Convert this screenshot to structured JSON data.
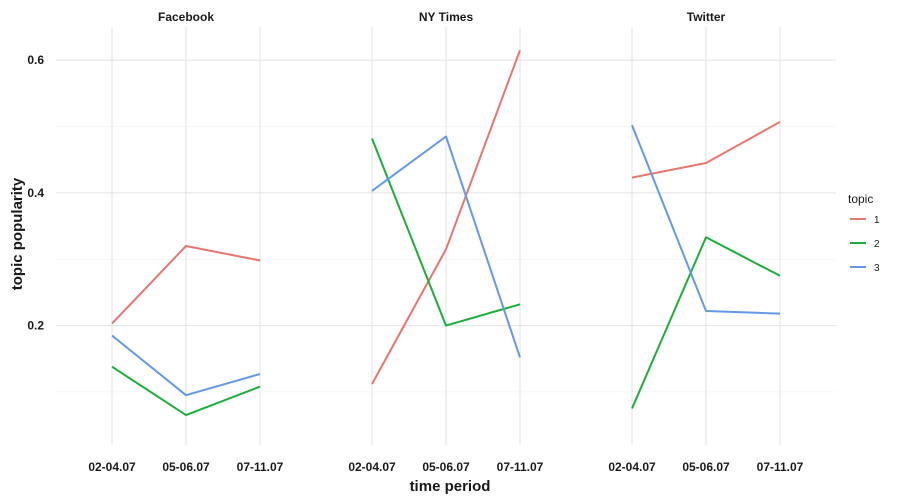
{
  "chart_data": {
    "type": "line",
    "xlabel": "time period",
    "ylabel": "topic popularity",
    "ylim": [
      0.02,
      0.65
    ],
    "yticks": [
      0.2,
      0.4,
      0.6
    ],
    "ytick_labels": [
      "0.2",
      "0.4",
      "0.6"
    ],
    "categories": [
      "02-04.07",
      "05-06.07",
      "07-11.07"
    ],
    "grid": true,
    "legend": {
      "title": "topic",
      "placement": "right"
    },
    "series_colors": {
      "1": "#E8756E",
      "2": "#1BAE3A",
      "3": "#6498E9"
    },
    "panels": [
      {
        "title": "Facebook",
        "series": [
          {
            "name": "1",
            "values": [
              0.203,
              0.32,
              0.298
            ]
          },
          {
            "name": "2",
            "values": [
              0.138,
              0.065,
              0.108
            ]
          },
          {
            "name": "3",
            "values": [
              0.185,
              0.095,
              0.127
            ]
          }
        ]
      },
      {
        "title": "NY Times",
        "series": [
          {
            "name": "1",
            "values": [
              0.112,
              0.315,
              0.615
            ]
          },
          {
            "name": "2",
            "values": [
              0.482,
              0.2,
              0.232
            ]
          },
          {
            "name": "3",
            "values": [
              0.403,
              0.485,
              0.152
            ]
          }
        ]
      },
      {
        "title": "Twitter",
        "series": [
          {
            "name": "1",
            "values": [
              0.423,
              0.445,
              0.507
            ]
          },
          {
            "name": "2",
            "values": [
              0.075,
              0.333,
              0.275
            ]
          },
          {
            "name": "3",
            "values": [
              0.502,
              0.222,
              0.218
            ]
          }
        ]
      }
    ]
  }
}
